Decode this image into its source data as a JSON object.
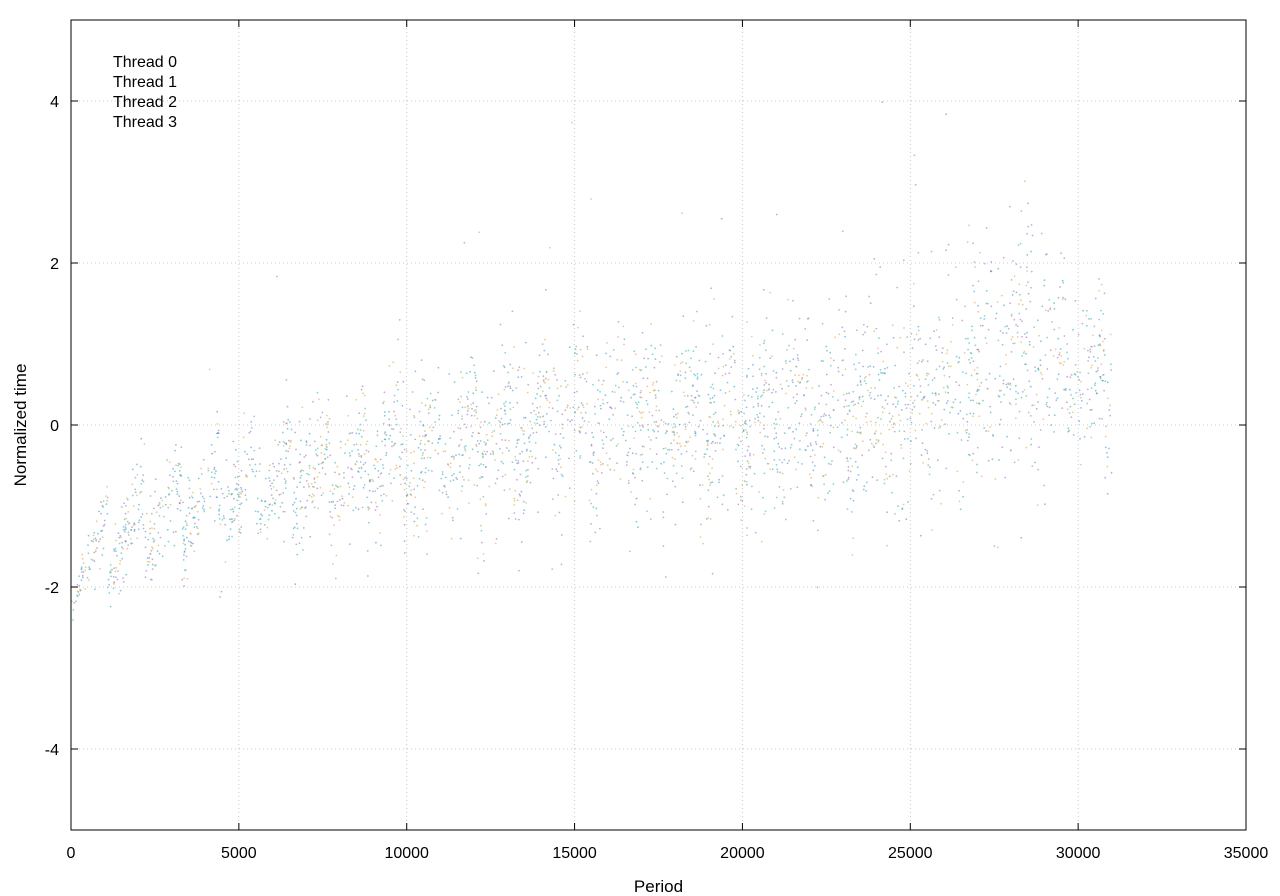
{
  "chart_data": {
    "type": "scatter",
    "title": "",
    "xlabel": "Period",
    "ylabel": "Normalized time",
    "xlim": [
      0,
      35000
    ],
    "ylim": [
      -5,
      5
    ],
    "xticks": [
      0,
      5000,
      10000,
      15000,
      20000,
      25000,
      30000,
      35000
    ],
    "yticks": [
      -4,
      -2,
      0,
      2,
      4
    ],
    "grid": true,
    "grid_style": "dotted",
    "legend_position": "top-left",
    "series": [
      {
        "name": "Thread 0",
        "color": "#9467bd"
      },
      {
        "name": "Thread 1",
        "color": "#1f9bc7"
      },
      {
        "name": "Thread 2",
        "color": "#2bb0a8"
      },
      {
        "name": "Thread 3",
        "color": "#e0a030"
      }
    ],
    "trend_profile": {
      "description_points_x": [
        0,
        500,
        2000,
        5000,
        10000,
        15000,
        20000,
        25000,
        28500,
        30000,
        31000
      ],
      "median_y": [
        -1.9,
        -1.6,
        -1.2,
        -0.8,
        -0.4,
        0.0,
        0.1,
        0.2,
        0.9,
        0.6,
        0.5
      ],
      "spread_y": [
        0.1,
        0.3,
        0.5,
        0.6,
        0.8,
        0.9,
        1.0,
        1.1,
        1.4,
        0.9,
        0.8
      ]
    }
  }
}
